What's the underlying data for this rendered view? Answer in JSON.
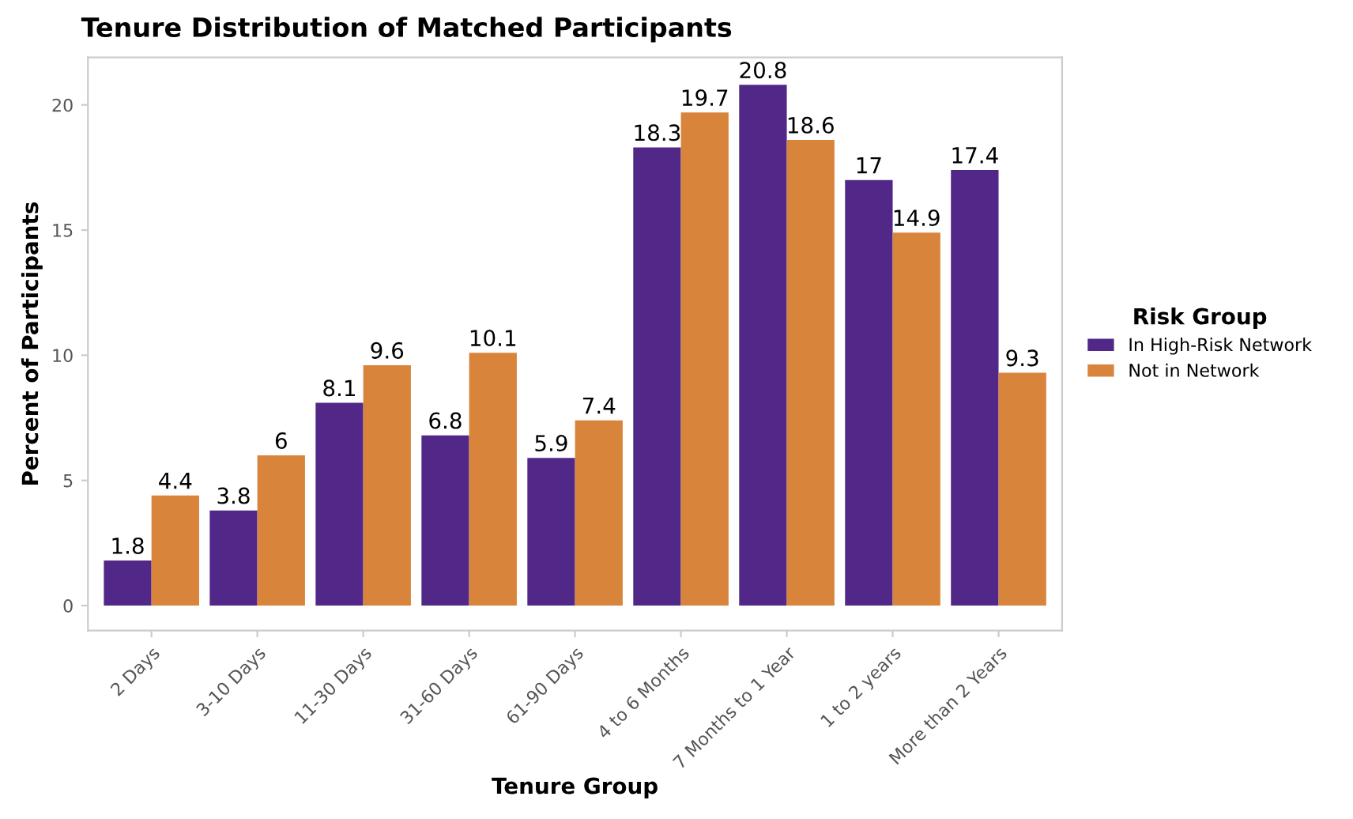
{
  "chart_data": {
    "type": "bar",
    "title": "Tenure Distribution of Matched Participants",
    "xlabel": "Tenure Group",
    "ylabel": "Percent of Participants",
    "legend_title": "Risk Group",
    "categories": [
      "2 Days",
      "3-10 Days",
      "11-30 Days",
      "31-60 Days",
      "61-90 Days",
      "4 to 6 Months",
      "7 Months to 1 Year",
      "1 to 2 years",
      "More than 2 Years"
    ],
    "series": [
      {
        "name": "In High-Risk Network",
        "color": "#512888",
        "values": [
          1.8,
          3.8,
          8.1,
          6.8,
          5.9,
          18.3,
          20.8,
          17,
          17.4
        ]
      },
      {
        "name": "Not in Network",
        "color": "#d9843b",
        "values": [
          4.4,
          6,
          9.6,
          10.1,
          7.4,
          19.7,
          18.6,
          14.9,
          9.3
        ]
      }
    ],
    "ylim": [
      -1,
      21.9
    ],
    "yticks": [
      0,
      5,
      10,
      15,
      20
    ],
    "grid": false,
    "legend": "right",
    "data_labels": true
  }
}
